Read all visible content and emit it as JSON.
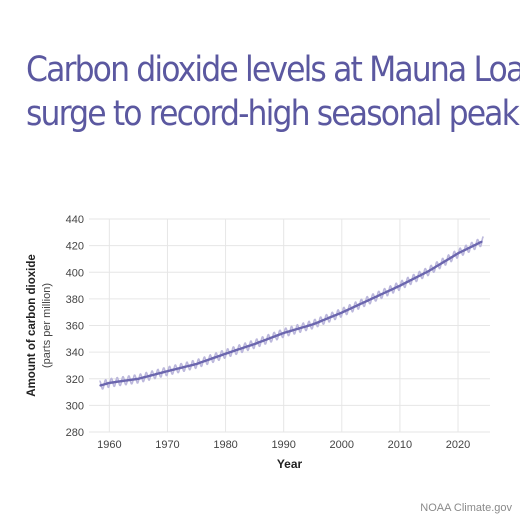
{
  "title": {
    "line1": "Carbon dioxide levels at Mauna Loa",
    "line2": "surge to record-high seasonal peak"
  },
  "credit": "NOAA Climate.gov",
  "colors": {
    "title": "#5b58a0",
    "trend_line": "#6b66ae",
    "monthly_line": "#bcb8dc",
    "grid": "#e6e6e6",
    "axis_text": "#444444",
    "label_text": "#222222"
  },
  "chart_data": {
    "type": "line",
    "xlabel": "Year",
    "ylabel": "Amount of carbon dioxide",
    "ylabel_sub": "(parts per million)",
    "xlim": [
      1956.5,
      2025.5
    ],
    "ylim": [
      280,
      440
    ],
    "x_ticks": [
      1960,
      1970,
      1980,
      1990,
      2000,
      2010,
      2020
    ],
    "y_ticks": [
      280,
      300,
      320,
      340,
      360,
      380,
      400,
      420,
      440
    ],
    "grid": true,
    "legend": "none",
    "seasonal_amplitude": 3.2,
    "series": [
      {
        "style": "monthly",
        "x": [
          1958.3,
          2024.4
        ],
        "y": [
          316.0,
          426.5
        ]
      },
      {
        "style": "trend",
        "x": [
          1958.5,
          1960,
          1965,
          1970,
          1975,
          1980,
          1985,
          1990,
          1995,
          2000,
          2005,
          2010,
          2015,
          2020,
          2024
        ],
        "y": [
          315.0,
          316.9,
          320.0,
          325.7,
          331.1,
          338.8,
          346.1,
          354.4,
          360.8,
          369.7,
          379.8,
          389.9,
          401.0,
          414.2,
          422.8
        ]
      }
    ]
  }
}
